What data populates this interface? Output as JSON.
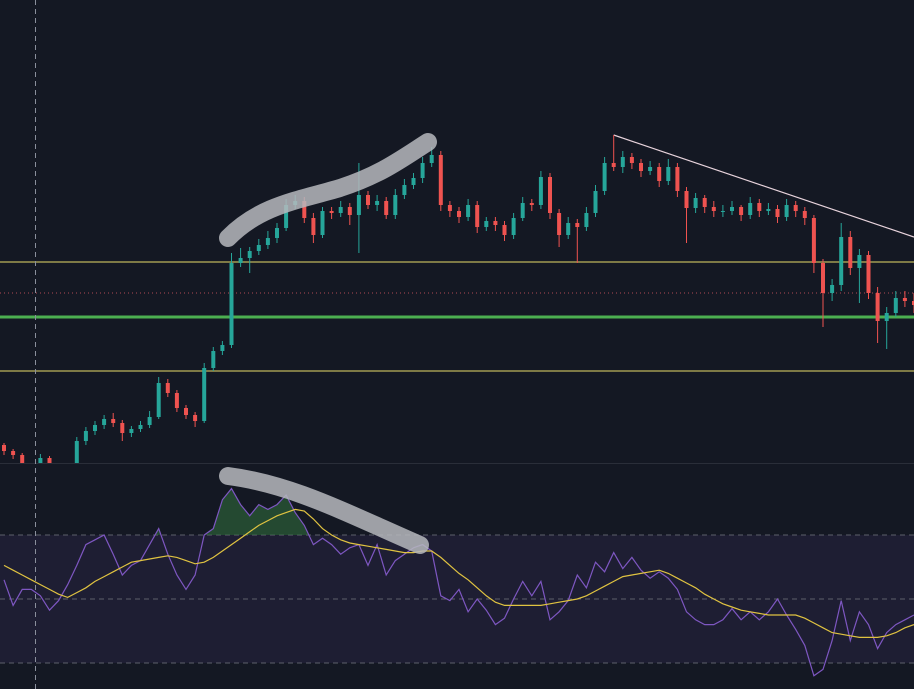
{
  "chart_data": [
    {
      "type": "candlestick",
      "color_up": "#26a69a",
      "color_down": "#ef5350",
      "xlim": [
        0,
        100
      ],
      "ylim": [
        0,
        463
      ],
      "candles": [
        [
          18,
          20,
          8,
          12
        ],
        [
          12,
          14,
          4,
          8
        ],
        [
          8,
          10,
          -14,
          -10
        ],
        [
          -10,
          -2,
          -12,
          -5
        ],
        [
          -5,
          9,
          -7,
          5
        ],
        [
          5,
          7,
          -18,
          -15
        ],
        [
          -15,
          -12,
          -24,
          -20
        ],
        [
          -20,
          -5,
          -22,
          -8
        ],
        [
          -8,
          26,
          -10,
          22
        ],
        [
          22,
          36,
          18,
          32
        ],
        [
          32,
          42,
          28,
          38
        ],
        [
          38,
          48,
          34,
          44
        ],
        [
          44,
          50,
          36,
          40
        ],
        [
          40,
          43,
          22,
          30
        ],
        [
          30,
          37,
          26,
          34
        ],
        [
          34,
          42,
          31,
          38
        ],
        [
          38,
          52,
          35,
          46
        ],
        [
          46,
          86,
          44,
          80
        ],
        [
          80,
          84,
          66,
          70
        ],
        [
          70,
          73,
          51,
          55
        ],
        [
          55,
          58,
          44,
          48
        ],
        [
          48,
          51,
          36,
          42
        ],
        [
          42,
          100,
          40,
          95
        ],
        [
          95,
          116,
          92,
          112
        ],
        [
          112,
          122,
          108,
          118
        ],
        [
          118,
          210,
          115,
          200
        ],
        [
          200,
          215,
          196,
          205
        ],
        [
          205,
          216,
          190,
          212
        ],
        [
          212,
          224,
          208,
          218
        ],
        [
          218,
          232,
          214,
          225
        ],
        [
          225,
          240,
          220,
          235
        ],
        [
          235,
          264,
          232,
          258
        ],
        [
          258,
          268,
          254,
          262
        ],
        [
          262,
          266,
          240,
          245
        ],
        [
          245,
          250,
          220,
          228
        ],
        [
          228,
          256,
          225,
          252
        ],
        [
          252,
          256,
          244,
          250
        ],
        [
          250,
          262,
          246,
          256
        ],
        [
          256,
          260,
          238,
          248
        ],
        [
          248,
          300,
          210,
          268
        ],
        [
          268,
          272,
          254,
          258
        ],
        [
          258,
          268,
          252,
          262
        ],
        [
          262,
          266,
          244,
          248
        ],
        [
          248,
          274,
          244,
          268
        ],
        [
          268,
          284,
          264,
          278
        ],
        [
          278,
          290,
          274,
          285
        ],
        [
          285,
          306,
          280,
          300
        ],
        [
          300,
          316,
          296,
          308
        ],
        [
          308,
          312,
          252,
          258
        ],
        [
          258,
          262,
          246,
          252
        ],
        [
          252,
          256,
          240,
          246
        ],
        [
          246,
          264,
          242,
          258
        ],
        [
          258,
          262,
          230,
          236
        ],
        [
          236,
          246,
          232,
          242
        ],
        [
          242,
          246,
          232,
          238
        ],
        [
          238,
          242,
          222,
          228
        ],
        [
          228,
          250,
          224,
          245
        ],
        [
          245,
          266,
          242,
          260
        ],
        [
          260,
          264,
          252,
          258
        ],
        [
          258,
          292,
          254,
          286
        ],
        [
          286,
          290,
          244,
          250
        ],
        [
          250,
          254,
          216,
          228
        ],
        [
          228,
          246,
          224,
          240
        ],
        [
          240,
          244,
          200,
          236
        ],
        [
          236,
          256,
          232,
          250
        ],
        [
          250,
          278,
          246,
          272
        ],
        [
          272,
          306,
          268,
          300
        ],
        [
          300,
          328,
          292,
          296
        ],
        [
          296,
          312,
          290,
          306
        ],
        [
          306,
          310,
          294,
          300
        ],
        [
          300,
          304,
          286,
          292
        ],
        [
          292,
          302,
          288,
          296
        ],
        [
          296,
          300,
          276,
          282
        ],
        [
          282,
          304,
          278,
          296
        ],
        [
          296,
          300,
          266,
          272
        ],
        [
          272,
          276,
          220,
          255
        ],
        [
          255,
          270,
          250,
          265
        ],
        [
          265,
          268,
          250,
          256
        ],
        [
          256,
          262,
          246,
          252
        ],
        [
          252,
          258,
          246,
          252
        ],
        [
          252,
          262,
          248,
          256
        ],
        [
          256,
          258,
          242,
          248
        ],
        [
          248,
          266,
          244,
          260
        ],
        [
          260,
          264,
          246,
          252
        ],
        [
          252,
          260,
          248,
          254
        ],
        [
          254,
          258,
          240,
          246
        ],
        [
          246,
          264,
          242,
          258
        ],
        [
          258,
          262,
          246,
          252
        ],
        [
          252,
          256,
          238,
          245
        ],
        [
          245,
          248,
          190,
          200
        ],
        [
          200,
          204,
          136,
          170
        ],
        [
          170,
          184,
          162,
          178
        ],
        [
          178,
          240,
          172,
          226
        ],
        [
          226,
          232,
          188,
          195
        ],
        [
          195,
          214,
          160,
          208
        ],
        [
          208,
          212,
          164,
          170
        ],
        [
          170,
          176,
          120,
          142
        ],
        [
          142,
          156,
          114,
          150
        ],
        [
          150,
          172,
          146,
          165
        ],
        [
          165,
          172,
          156,
          162
        ],
        [
          162,
          170,
          150,
          158
        ]
      ],
      "levels": [
        {
          "value": 201,
          "color": "#e8dc6a",
          "style": "solid"
        },
        {
          "value": 92,
          "color": "#e8dc6a",
          "style": "solid"
        },
        {
          "value": 146,
          "color": "#4caf50",
          "style": "thick"
        },
        {
          "value": 170,
          "color": "#b04a55",
          "style": "dotted"
        }
      ],
      "trendline": {
        "x": [
          67,
          100
        ],
        "values": [
          328,
          226
        ],
        "color": "#e8d3dc"
      }
    },
    {
      "type": "line",
      "xlim": [
        0,
        100
      ],
      "ylim": [
        21.875,
        92.5
      ],
      "band": [
        30,
        70
      ],
      "band_color": "#7e57c2",
      "hlines": [
        70,
        50,
        30
      ],
      "overbought_fill": "#2e6b3a",
      "series": [
        {
          "color": "#7e57c2",
          "values": [
            56,
            48,
            53,
            53,
            51,
            46.5,
            49.5,
            54.5,
            60.5,
            67,
            68.5,
            70,
            64,
            57.5,
            60.5,
            62,
            67,
            72,
            64,
            57.5,
            53,
            57.5,
            70,
            72,
            81,
            84.5,
            79.5,
            76,
            79.5,
            78,
            79.5,
            82.5,
            77,
            73,
            67,
            69,
            67,
            64,
            66,
            67,
            60.5,
            67,
            57.5,
            62,
            64,
            66,
            67,
            65,
            51,
            49.5,
            53,
            46,
            50,
            46.5,
            42,
            44,
            50,
            55.5,
            51,
            55.5,
            43.5,
            46,
            49.5,
            57.5,
            53.5,
            61.5,
            58.5,
            64.5,
            59.5,
            63,
            59,
            56.5,
            58.5,
            56.5,
            53,
            46,
            43.5,
            42,
            42,
            43.5,
            47,
            43.5,
            46,
            43.5,
            46,
            50,
            45,
            40.5,
            35.5,
            26,
            28,
            37,
            49.5,
            37,
            46,
            42,
            34.5,
            39.5,
            42,
            43.5,
            45
          ]
        },
        {
          "color": "#e0c341",
          "values": [
            60.5,
            59,
            57.5,
            56,
            54.5,
            53,
            51.5,
            50.5,
            52,
            53.5,
            55.5,
            57,
            58.5,
            60,
            61.5,
            62,
            62.5,
            63,
            63.5,
            63,
            62,
            61,
            61.5,
            63,
            65,
            67,
            69,
            71,
            73,
            74.5,
            76,
            77,
            78,
            77.5,
            75,
            72,
            70,
            68.5,
            67.5,
            67,
            66.5,
            66,
            65.5,
            65,
            64.5,
            64.5,
            65,
            65,
            63,
            60.5,
            58,
            56,
            53.5,
            51,
            49,
            48,
            48,
            48,
            48,
            48,
            48.5,
            49,
            49.5,
            50,
            51,
            52.5,
            54,
            55.5,
            57,
            57.5,
            58,
            58.5,
            59,
            58,
            56.5,
            55,
            53.5,
            51.5,
            50,
            48.5,
            47.5,
            46.5,
            46,
            45.5,
            45,
            45,
            45,
            45,
            44,
            42.5,
            41,
            39.5,
            39,
            38.5,
            38,
            38,
            38,
            38.5,
            39.5,
            41,
            42
          ]
        }
      ]
    }
  ]
}
